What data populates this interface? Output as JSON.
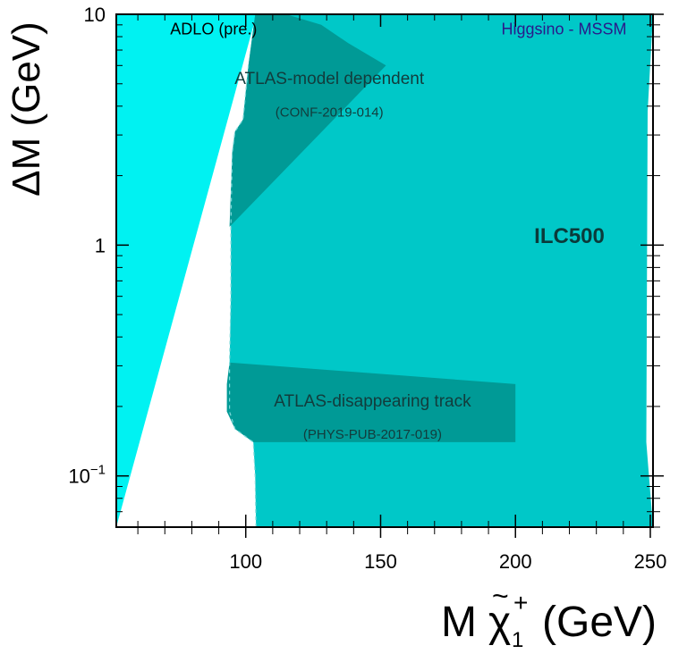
{
  "chart_data": {
    "type": "area",
    "title": "",
    "xlabel": {
      "main": "M",
      "particle": "χ",
      "tilde": "~",
      "superscript": "+",
      "subscript": "1",
      "unit": "(GeV)"
    },
    "ylabel": "ΔM (GeV)",
    "xlim": [
      52,
      251
    ],
    "ylim": [
      0.06,
      10
    ],
    "y_scale": "log",
    "x_ticks": [
      100,
      150,
      200,
      250
    ],
    "x_tick_labels": [
      "100",
      "150",
      "200",
      "250"
    ],
    "y_ticks": [
      0.1,
      1,
      10
    ],
    "y_tick_labels": [
      {
        "base": "10",
        "exp": "−1"
      },
      {
        "base": "1",
        "exp": ""
      },
      {
        "base": "10",
        "exp": ""
      }
    ],
    "grid": false,
    "colors": {
      "adlo": "#00f2f2",
      "ilc500": "#00c8c8",
      "atlas": "#009a96",
      "background": "#ffffff"
    },
    "regions": [
      {
        "label": "ADLO (pre.)",
        "color": "#00f2f2",
        "boundary": [
          [
            52,
            0.06
          ],
          [
            52,
            10
          ],
          [
            104,
            10
          ]
        ]
      },
      {
        "label": "ILC500",
        "color": "#00c8c8",
        "boundary": [
          [
            103.8,
            0.06
          ],
          [
            103.5,
            0.1
          ],
          [
            102.8,
            0.14
          ],
          [
            96,
            0.16
          ],
          [
            94,
            0.19
          ],
          [
            94,
            0.3
          ],
          [
            94.5,
            0.6
          ],
          [
            94.5,
            1.2
          ],
          [
            95,
            2.5
          ],
          [
            96,
            3.1
          ],
          [
            99,
            3.5
          ],
          [
            101,
            6
          ],
          [
            103.5,
            10
          ],
          [
            251,
            10
          ],
          [
            249,
            3.8
          ],
          [
            248.5,
            0.14
          ],
          [
            251,
            0.06
          ]
        ]
      },
      {
        "label": "ATLAS-model dependent",
        "sublabel": "(CONF-2019-014)",
        "color": "#009a96",
        "boundary": [
          [
            94,
            1.2
          ],
          [
            152,
            6
          ],
          [
            138,
            7.5
          ],
          [
            128,
            9
          ],
          [
            115,
            10
          ],
          [
            103.5,
            10
          ],
          [
            101,
            6
          ],
          [
            99,
            3.5
          ],
          [
            96,
            3.1
          ],
          [
            95,
            2.5
          ]
        ]
      },
      {
        "label": "ATLAS-disappearing track",
        "sublabel": "(PHYS-PUB-2017-019)",
        "color": "#009a96",
        "boundary": [
          [
            94,
            0.31
          ],
          [
            200,
            0.25
          ],
          [
            200,
            0.14
          ],
          [
            102.8,
            0.14
          ],
          [
            96,
            0.16
          ],
          [
            93,
            0.19
          ],
          [
            93,
            0.25
          ]
        ]
      }
    ],
    "annotations": [
      {
        "id": "adlo",
        "text": "ADLO (pre.)",
        "x": 72,
        "y": 8.2,
        "color": "#000000"
      },
      {
        "id": "higgsino",
        "text": "Higgsino - MSSM",
        "x": 218,
        "y": 8.2,
        "color": "#2a1a8a"
      },
      {
        "id": "ilc500",
        "text": "ILC500",
        "x": 220,
        "y": 1.02,
        "color": "#0b3a3a",
        "bold": true
      },
      {
        "id": "model-dep",
        "text": "ATLAS-model dependent",
        "x": 131,
        "y": 5.0,
        "color": "#123c3c"
      },
      {
        "id": "model-dep-ref",
        "text": "(CONF-2019-014)",
        "x": 131,
        "y": 3.6,
        "color": "#123c3c"
      },
      {
        "id": "disappearing",
        "text": "ATLAS-disappearing track",
        "x": 147,
        "y": 0.2,
        "color": "#123c3c"
      },
      {
        "id": "disappearing-ref",
        "text": "(PHYS-PUB-2017-019)",
        "x": 147,
        "y": 0.145,
        "color": "#123c3c"
      }
    ]
  }
}
